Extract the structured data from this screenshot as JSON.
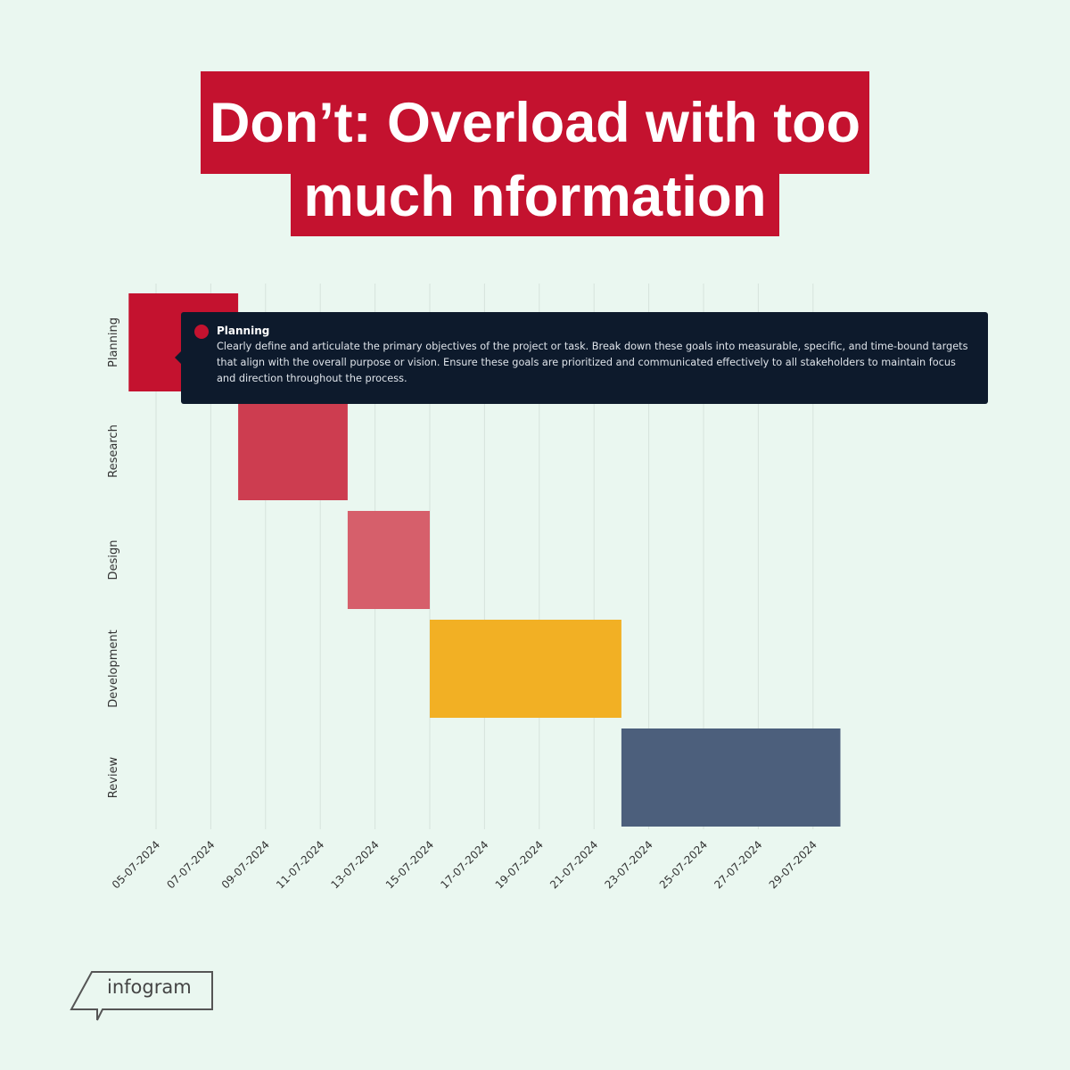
{
  "title": {
    "line1": "Don’t: Overload with too",
    "line2": "much nformation"
  },
  "chart_data": {
    "type": "gantt",
    "categories": [
      "Planning",
      "Research",
      "Design",
      "Development",
      "Review"
    ],
    "tasks": [
      {
        "name": "Planning",
        "start": "2024-07-04",
        "end": "2024-07-08",
        "color": "#c4122f"
      },
      {
        "name": "Research",
        "start": "2024-07-08",
        "end": "2024-07-12",
        "color": "#cd3d50"
      },
      {
        "name": "Design",
        "start": "2024-07-12",
        "end": "2024-07-15",
        "color": "#d65f6b"
      },
      {
        "name": "Development",
        "start": "2024-07-15",
        "end": "2024-07-22",
        "color": "#f2b024"
      },
      {
        "name": "Review",
        "start": "2024-07-22",
        "end": "2024-07-30",
        "color": "#4c5f7c"
      }
    ],
    "x_ticks": [
      "05-07-2024",
      "07-07-2024",
      "09-07-2024",
      "11-07-2024",
      "13-07-2024",
      "15-07-2024",
      "17-07-2024",
      "19-07-2024",
      "21-07-2024",
      "23-07-2024",
      "25-07-2024",
      "27-07-2024",
      "29-07-2024"
    ],
    "grid": true
  },
  "tooltip": {
    "title": "Planning",
    "body": "Clearly define and articulate the primary objectives of the project or task. Break down these goals into measurable, specific, and time-bound targets that align with the overall purpose or vision. Ensure these goals are prioritized and communicated effectively to all stakeholders to maintain focus and direction throughout the process.",
    "dot_color": "#c4122f"
  },
  "logo": {
    "text": "infogram"
  }
}
